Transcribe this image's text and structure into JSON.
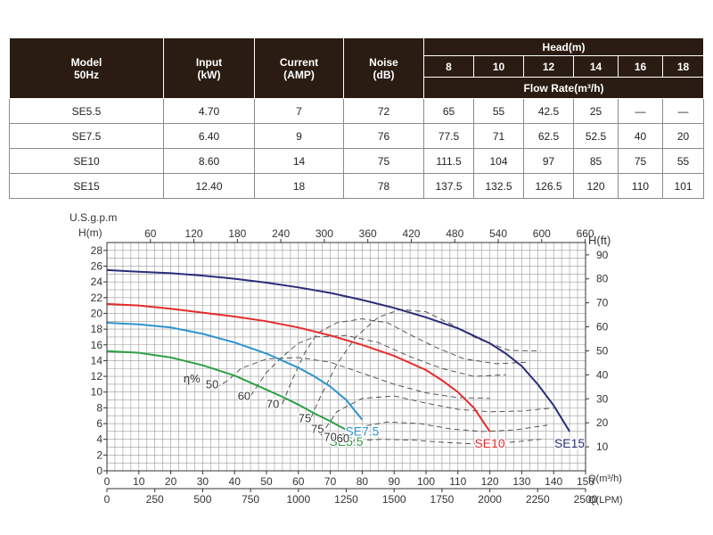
{
  "table": {
    "headers": {
      "model": [
        "Model",
        "50Hz"
      ],
      "input": [
        "Input",
        "(kW)"
      ],
      "current": [
        "Current",
        "(AMP)"
      ],
      "noise": [
        "Noise",
        "(dB)"
      ],
      "head": "Head(m)",
      "heads": [
        "8",
        "10",
        "12",
        "14",
        "16",
        "18"
      ],
      "flow_rate": "Flow Rate(m³/h)"
    },
    "rows": [
      {
        "model": "SE5.5",
        "input": "4.70",
        "current": "7",
        "noise": "72",
        "flows": [
          "65",
          "55",
          "42.5",
          "25",
          "—",
          "—"
        ]
      },
      {
        "model": "SE7.5",
        "input": "6.40",
        "current": "9",
        "noise": "76",
        "flows": [
          "77.5",
          "71",
          "62.5",
          "52.5",
          "40",
          "20"
        ]
      },
      {
        "model": "SE10",
        "input": "8.60",
        "current": "14",
        "noise": "75",
        "flows": [
          "111.5",
          "104",
          "97",
          "85",
          "75",
          "55"
        ]
      },
      {
        "model": "SE15",
        "input": "12.40",
        "current": "18",
        "noise": "78",
        "flows": [
          "137.5",
          "132.5",
          "126.5",
          "120",
          "110",
          "101"
        ]
      }
    ]
  },
  "chart_data": {
    "type": "line",
    "xlabel": "Q(m³/h)",
    "xlabel_lpm": "Q(LPM)",
    "top_axis_label": "U.S.g.p.m",
    "ylabel_left": "H(m)",
    "ylabel_right": "H(ft)",
    "xlim": [
      0,
      150
    ],
    "ylim": [
      0,
      29
    ],
    "x_ticks": [
      0,
      10,
      20,
      30,
      40,
      50,
      60,
      70,
      80,
      90,
      100,
      110,
      120,
      130,
      140,
      150
    ],
    "lpm_ticks": [
      0,
      250,
      500,
      750,
      1000,
      1250,
      1500,
      1750,
      2000,
      2250,
      2500
    ],
    "gpm_ticks": [
      60,
      120,
      180,
      240,
      300,
      360,
      420,
      480,
      540,
      600,
      660
    ],
    "y_ticks": [
      0,
      2,
      4,
      6,
      8,
      10,
      12,
      14,
      16,
      18,
      20,
      22,
      24,
      26,
      28
    ],
    "ft_ticks": [
      10,
      20,
      30,
      40,
      50,
      60,
      70,
      80,
      90
    ],
    "grid": true,
    "series": [
      {
        "name": "SE5.5",
        "color": "#2ea043",
        "x": [
          0,
          10,
          20,
          30,
          40,
          50,
          55,
          60,
          65,
          70,
          75
        ],
        "y": [
          15.2,
          15.0,
          14.4,
          13.4,
          12.1,
          10.3,
          9.4,
          8.4,
          7.3,
          6.3,
          5.2
        ]
      },
      {
        "name": "SE7.5",
        "color": "#2e94cc",
        "x": [
          0,
          10,
          20,
          30,
          40,
          50,
          60,
          65,
          70,
          75,
          80
        ],
        "y": [
          18.8,
          18.6,
          18.2,
          17.4,
          16.3,
          14.9,
          13.1,
          12.0,
          10.7,
          9.0,
          6.5
        ]
      },
      {
        "name": "SE10",
        "color": "#e62b2b",
        "x": [
          0,
          10,
          20,
          30,
          40,
          50,
          60,
          70,
          80,
          90,
          100,
          105,
          110,
          115,
          120
        ],
        "y": [
          21.2,
          21.0,
          20.6,
          20.1,
          19.6,
          19.0,
          18.2,
          17.2,
          16.0,
          14.6,
          12.8,
          11.5,
          10.0,
          8.0,
          5.0
        ]
      },
      {
        "name": "SE15",
        "color": "#2a2d7a",
        "x": [
          0,
          10,
          20,
          30,
          40,
          50,
          60,
          70,
          80,
          90,
          100,
          110,
          120,
          125,
          130,
          135,
          140,
          145
        ],
        "y": [
          25.5,
          25.3,
          25.1,
          24.8,
          24.4,
          23.9,
          23.3,
          22.6,
          21.7,
          20.7,
          19.5,
          18.1,
          16.2,
          14.9,
          13.3,
          11.0,
          8.3,
          5.0
        ]
      }
    ],
    "efficiency_label": "η%",
    "efficiency_annotations": [
      {
        "text": "50",
        "x": 33,
        "y": 10.5
      },
      {
        "text": "60",
        "x": 43,
        "y": 9.0
      },
      {
        "text": "70",
        "x": 52,
        "y": 8.0
      },
      {
        "text": "75",
        "x": 62,
        "y": 6.2
      },
      {
        "text": "75",
        "x": 66,
        "y": 4.8
      },
      {
        "text": "70",
        "x": 70,
        "y": 3.8
      },
      {
        "text": "60",
        "x": 74,
        "y": 3.6
      }
    ],
    "efficiency_curves": [
      {
        "x": [
          34,
          38,
          42,
          50,
          60,
          70,
          80,
          90,
          100,
          110,
          120
        ],
        "y": [
          10.5,
          11.5,
          13.0,
          14.2,
          14.4,
          13.8,
          12.4,
          11.0,
          9.9,
          9.3,
          9.2
        ]
      },
      {
        "x": [
          45,
          50,
          55,
          60,
          65,
          75,
          85,
          95,
          105,
          115,
          125
        ],
        "y": [
          9.5,
          12.5,
          14.5,
          16.2,
          17.0,
          17.2,
          16.3,
          14.5,
          13.0,
          12.0,
          12.2
        ]
      },
      {
        "x": [
          55,
          58,
          62,
          66,
          72,
          80,
          88,
          95,
          103,
          112,
          122,
          132
        ],
        "y": [
          8.5,
          11.5,
          15.0,
          17.5,
          18.8,
          19.3,
          18.8,
          17.3,
          15.7,
          14.2,
          13.6,
          13.8
        ]
      },
      {
        "x": [
          64,
          67,
          72,
          78,
          85,
          92,
          100,
          108,
          116,
          126,
          136
        ],
        "y": [
          6.8,
          9.5,
          13.5,
          17.0,
          19.5,
          20.5,
          20.2,
          18.6,
          16.8,
          15.3,
          15.2
        ]
      },
      {
        "x": [
          67,
          72,
          80,
          90,
          100,
          110,
          120,
          130,
          140
        ],
        "y": [
          4.5,
          7.5,
          9.2,
          9.5,
          8.6,
          7.8,
          7.5,
          7.6,
          8.0
        ]
      },
      {
        "x": [
          71,
          78,
          88,
          98,
          108,
          118,
          128,
          138
        ],
        "y": [
          4.0,
          5.5,
          6.2,
          6.0,
          5.3,
          5.0,
          5.2,
          5.8
        ]
      },
      {
        "x": [
          76,
          86,
          96,
          106,
          116,
          126,
          136
        ],
        "y": [
          3.8,
          4.0,
          3.9,
          3.6,
          3.4,
          3.6,
          4.0
        ]
      }
    ]
  }
}
